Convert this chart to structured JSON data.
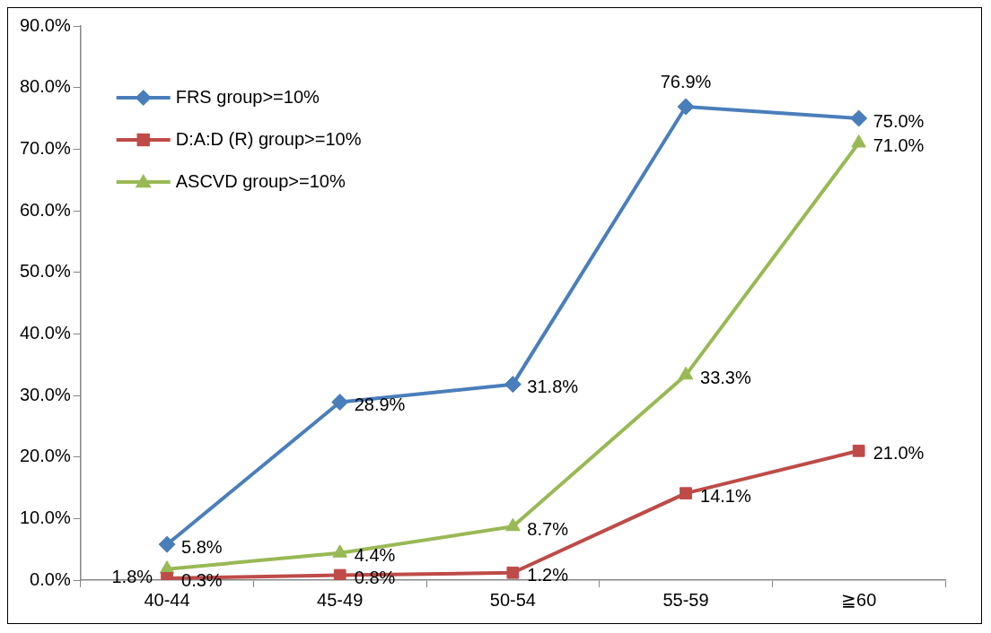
{
  "chart_data": {
    "type": "line",
    "categories": [
      "40-44",
      "45-49",
      "50-54",
      "55-59",
      "≧60"
    ],
    "series": [
      {
        "name": "FRS group>=10%",
        "color": "#4a7ebb",
        "marker": "diamond",
        "values": [
          5.8,
          28.9,
          31.8,
          76.9,
          75.0
        ],
        "value_labels": [
          "5.8%",
          "28.9%",
          "31.8%",
          "76.9%",
          "75.0%"
        ]
      },
      {
        "name": "D:A:D (R) group>=10%",
        "color": "#be4b48",
        "marker": "square",
        "values": [
          0.3,
          0.8,
          1.2,
          14.1,
          21.0
        ],
        "value_labels": [
          "0.3%",
          "0.8%",
          "1.2%",
          "14.1%",
          "21.0%"
        ]
      },
      {
        "name": "ASCVD group>=10%",
        "color": "#98b954",
        "marker": "triangle",
        "values": [
          1.8,
          4.4,
          8.7,
          33.3,
          71.0
        ],
        "value_labels": [
          "1.8%",
          "4.4%",
          "8.7%",
          "33.3%",
          "71.0%"
        ]
      }
    ],
    "ylim": [
      0,
      90
    ],
    "yticks": [
      {
        "value": 0,
        "label": "0.0%"
      },
      {
        "value": 10,
        "label": "10.0%"
      },
      {
        "value": 20,
        "label": "20.0%"
      },
      {
        "value": 30,
        "label": "30.0%"
      },
      {
        "value": 40,
        "label": "40.0%"
      },
      {
        "value": 50,
        "label": "50.0%"
      },
      {
        "value": 60,
        "label": "60.0%"
      },
      {
        "value": 70,
        "label": "70.0%"
      },
      {
        "value": 80,
        "label": "80.0%"
      },
      {
        "value": 90,
        "label": "90.0%"
      }
    ],
    "grid": false,
    "legend": "top left",
    "line_style": "solid"
  }
}
